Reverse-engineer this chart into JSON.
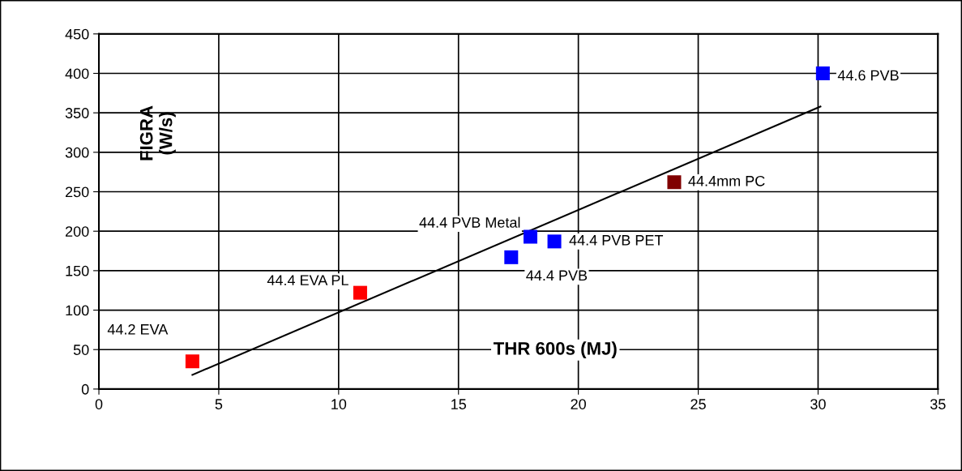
{
  "chart_data": {
    "type": "scatter",
    "xlabel": "THR 600s (MJ)",
    "ylabel": "FIGRA\n(W/s)",
    "xlim": [
      0,
      35
    ],
    "xticks": [
      0,
      5,
      10,
      15,
      20,
      25,
      30,
      35
    ],
    "ylim": [
      0,
      450
    ],
    "yticks": [
      0,
      50,
      100,
      150,
      200,
      250,
      300,
      350,
      400,
      450
    ],
    "grid": true,
    "legend": false,
    "marker": "square",
    "series": [
      {
        "name": "44.2 EVA",
        "color": "#ff0000",
        "x": [
          3.9
        ],
        "values": [
          35
        ]
      },
      {
        "name": "44.4 EVA PL",
        "color": "#ff0000",
        "x": [
          10.9
        ],
        "values": [
          122
        ]
      },
      {
        "name": "44.4 PVB",
        "color": "#0000ff",
        "x": [
          17.2
        ],
        "values": [
          167
        ]
      },
      {
        "name": "44.4 PVB Metal",
        "color": "#0000ff",
        "x": [
          18.0
        ],
        "values": [
          193
        ]
      },
      {
        "name": "44.4 PVB PET",
        "color": "#0000ff",
        "x": [
          19.0
        ],
        "values": [
          187
        ]
      },
      {
        "name": "44.4mm PC",
        "color": "#800000",
        "x": [
          24.0
        ],
        "values": [
          262
        ]
      },
      {
        "name": "44.6 PVB",
        "color": "#0000ff",
        "x": [
          30.2
        ],
        "values": [
          400
        ]
      },
      {
        "type": "line",
        "color": "#000000",
        "marker": "none",
        "x": [
          3.9,
          30.1
        ],
        "values": [
          18,
          358
        ]
      }
    ]
  }
}
